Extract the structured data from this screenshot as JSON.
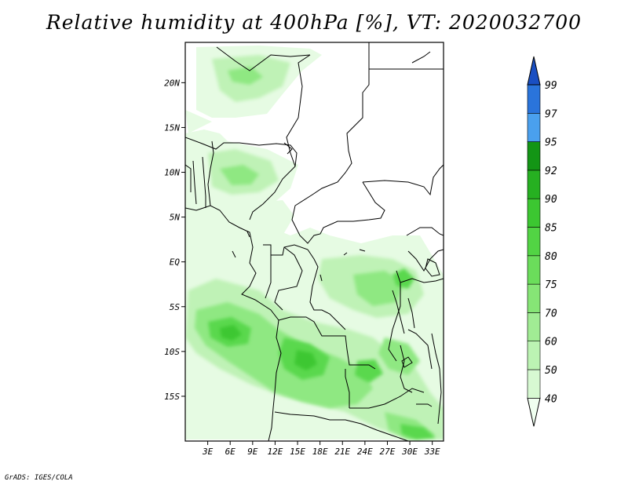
{
  "title": "Relative humidity at 400hPa [%], VT: 2020032700",
  "credit": "GrADS: IGES/COLA",
  "map": {
    "lon_range": [
      0,
      34.5
    ],
    "lat_range": [
      -20,
      24.5
    ],
    "lat_ticks": [
      {
        "lat": 20,
        "label": "20N"
      },
      {
        "lat": 15,
        "label": "15N"
      },
      {
        "lat": 10,
        "label": "10N"
      },
      {
        "lat": 5,
        "label": "5N"
      },
      {
        "lat": 0,
        "label": "EQ"
      },
      {
        "lat": -5,
        "label": "5S"
      },
      {
        "lat": -10,
        "label": "10S"
      },
      {
        "lat": -15,
        "label": "15S"
      }
    ],
    "lon_ticks": [
      {
        "lon": 3,
        "label": "3E"
      },
      {
        "lon": 6,
        "label": "6E"
      },
      {
        "lon": 9,
        "label": "9E"
      },
      {
        "lon": 12,
        "label": "12E"
      },
      {
        "lon": 15,
        "label": "15E"
      },
      {
        "lon": 18,
        "label": "18E"
      },
      {
        "lon": 21,
        "label": "21E"
      },
      {
        "lon": 24,
        "label": "24E"
      },
      {
        "lon": 27,
        "label": "27E"
      },
      {
        "lon": 30,
        "label": "30E"
      },
      {
        "lon": 33,
        "label": "33E"
      }
    ]
  },
  "colorbar": {
    "levels": [
      "40",
      "50",
      "60",
      "70",
      "75",
      "80",
      "85",
      "90",
      "92",
      "95",
      "97",
      "99"
    ],
    "colors": [
      "#f0fff0",
      "#d7f9d2",
      "#bcf3b3",
      "#a1ec94",
      "#86e576",
      "#6bdd5b",
      "#52d444",
      "#3cc731",
      "#26b021",
      "#139515",
      "#4aa0ee",
      "#2a74db",
      "#1a4fc2"
    ]
  }
}
